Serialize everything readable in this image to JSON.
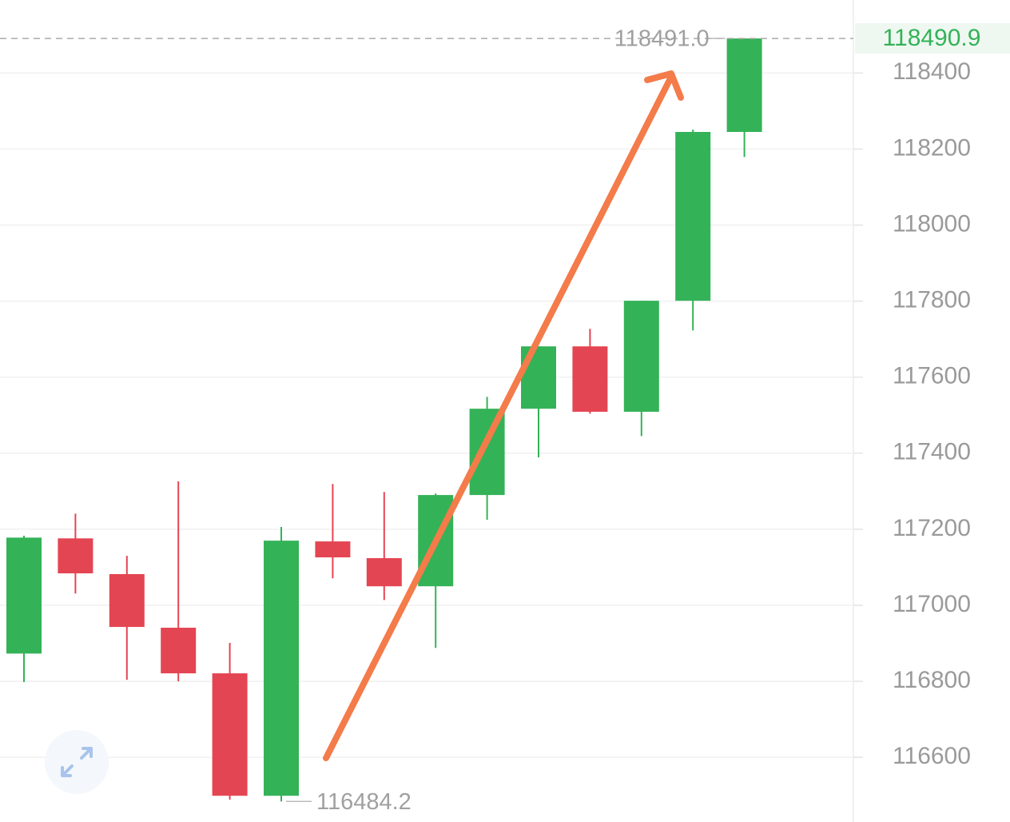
{
  "chart_data": {
    "type": "candlestick",
    "open": [
      116873,
      117176,
      117082,
      116941,
      116821,
      116499,
      117168,
      117124,
      117050,
      117290,
      117517,
      117681,
      117509,
      117801,
      118245
    ],
    "high": [
      117183,
      117241,
      117130,
      117326,
      116901,
      117206,
      117319,
      117298,
      117294,
      117548,
      117681,
      117727,
      117801,
      118251,
      118491.0
    ],
    "low": [
      116798,
      117031,
      116804,
      116800,
      116489,
      116484.2,
      117071,
      117014,
      116888,
      117225,
      117389,
      117504,
      117445,
      117723,
      118179
    ],
    "close": [
      117178,
      117084,
      116943,
      116821,
      116499,
      117170,
      117126,
      117050,
      117290,
      117517,
      117681,
      117509,
      117801,
      118245,
      118490.9
    ],
    "up_color": "#34b257",
    "down_color": "#e44552",
    "ylim": [
      116430,
      118592
    ],
    "yticks": [
      116600,
      116800,
      117000,
      117200,
      117400,
      117600,
      117800,
      118000,
      118200,
      118400
    ],
    "grid": true,
    "high_marker": {
      "value": 118491.0,
      "label": "118491.0"
    },
    "low_marker": {
      "value": 116484.2,
      "label": "116484.2"
    },
    "last_price": {
      "value": 118490.9,
      "label": "118490.9"
    }
  }
}
